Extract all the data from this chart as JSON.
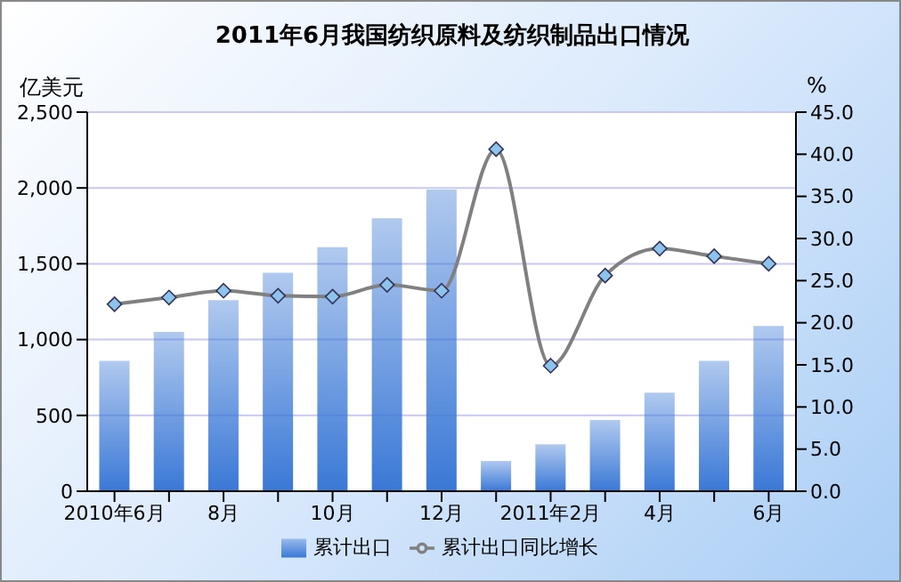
{
  "chart_data": {
    "type": "bar",
    "title": "2011年6月我国纺织原料及纺织制品出口情况",
    "categories": [
      "2010年6月",
      null,
      "8月",
      null,
      "10月",
      null,
      "12月",
      null,
      "2011年2月",
      null,
      "4月",
      null,
      "6月"
    ],
    "series": [
      {
        "name": "累计出口",
        "color": "#3a78d6",
        "values": [
          860,
          1050,
          1260,
          1440,
          1610,
          1800,
          1990,
          200,
          310,
          470,
          650,
          860,
          1090
        ]
      },
      {
        "name": "累计出口同比增长",
        "type": "line",
        "axis": "y2",
        "color": "#808080",
        "values": [
          22.2,
          23.0,
          23.8,
          23.2,
          23.1,
          24.5,
          23.8,
          40.6,
          14.9,
          25.6,
          28.8,
          27.9,
          27.0
        ]
      }
    ],
    "ylabel": "亿美元",
    "y2label": "%",
    "ylim": [
      0,
      2500
    ],
    "yticks": [
      {
        "value": 0,
        "label": "0"
      },
      {
        "value": 500,
        "label": "500"
      },
      {
        "value": 1000,
        "label": "1,000"
      },
      {
        "value": 1500,
        "label": "1,500"
      },
      {
        "value": 2000,
        "label": "2,000"
      },
      {
        "value": 2500,
        "label": "2,500"
      }
    ],
    "y2lim": [
      0,
      45
    ],
    "y2ticks": [
      {
        "value": 0,
        "label": "0.0"
      },
      {
        "value": 5,
        "label": "5.0"
      },
      {
        "value": 10,
        "label": "10.0"
      },
      {
        "value": 15,
        "label": "15.0"
      },
      {
        "value": 20,
        "label": "20.0"
      },
      {
        "value": 25,
        "label": "25.0"
      },
      {
        "value": 30,
        "label": "30.0"
      },
      {
        "value": 35,
        "label": "35.0"
      },
      {
        "value": 40,
        "label": "40.0"
      },
      {
        "value": 45,
        "label": "45.0"
      }
    ],
    "grid": "y",
    "legend": "bottom",
    "marker": "diamond",
    "line_style": "solid"
  }
}
